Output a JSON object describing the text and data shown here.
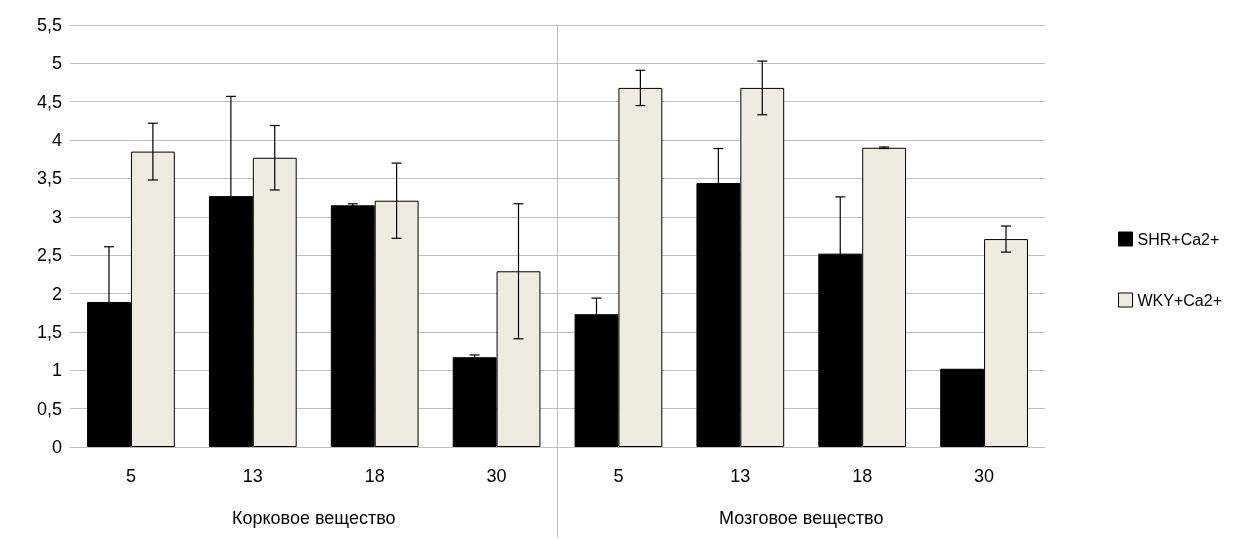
{
  "chart_data": {
    "type": "bar",
    "categories": [
      "5",
      "13",
      "18",
      "30",
      "5",
      "13",
      "18",
      "30"
    ],
    "series": [
      {
        "name": "SHR+Ca2+",
        "color": "#000000",
        "values": [
          1.89,
          3.27,
          3.15,
          1.17,
          1.73,
          3.44,
          2.52,
          1.02
        ],
        "errors": [
          0.72,
          1.3,
          0.02,
          0.03,
          0.21,
          0.45,
          0.74,
          null
        ]
      },
      {
        "name": "WKY+Ca2+",
        "color": "#eeece1",
        "values": [
          3.85,
          3.77,
          3.21,
          2.29,
          4.68,
          4.68,
          3.9,
          2.71
        ],
        "errors": [
          0.37,
          0.42,
          0.49,
          0.88,
          0.23,
          0.35,
          0.01,
          0.17
        ]
      }
    ],
    "annotations": [
      "Корковое вещество",
      "Мозговое вещество"
    ],
    "ylim": [
      0,
      5.5
    ],
    "yticks": [
      0,
      {
        "value": 0.5,
        "label": "0,5"
      },
      1,
      {
        "value": 1.5,
        "label": "1,5"
      },
      2,
      {
        "value": 2.5,
        "label": "2,5"
      },
      3,
      {
        "value": 3.5,
        "label": "3,5"
      },
      4,
      {
        "value": 4.5,
        "label": "4,5"
      },
      5,
      {
        "value": 5.5,
        "label": "5,5"
      }
    ],
    "grid": "y",
    "legend": "right"
  }
}
